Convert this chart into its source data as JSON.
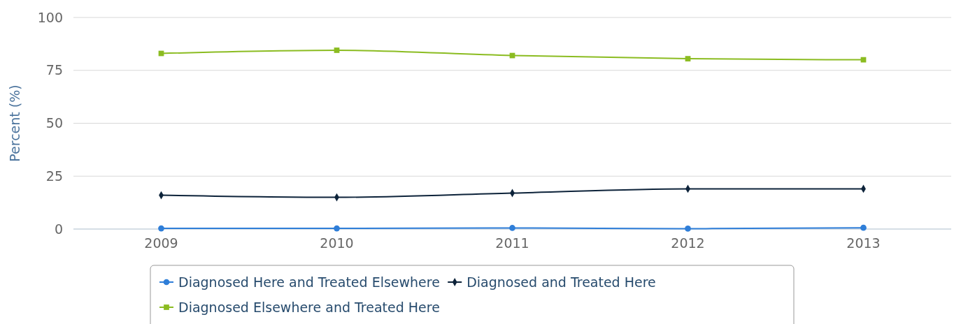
{
  "chart_data": {
    "type": "line",
    "ylabel": "Percent (%)",
    "categories": [
      "2009",
      "2010",
      "2011",
      "2012",
      "2013"
    ],
    "ylim": [
      0,
      100
    ],
    "yticks": [
      0,
      25,
      50,
      75,
      100
    ],
    "grid": "y",
    "legend": "bottom",
    "series": [
      {
        "name": "Diagnosed Here and Treated Elsewhere",
        "color": "#2f7ed8",
        "marker": "circle",
        "values": [
          0.3,
          0.3,
          0.5,
          0.2,
          0.6
        ]
      },
      {
        "name": "Diagnosed and Treated Here",
        "color": "#0d233a",
        "marker": "diamond",
        "values": [
          16,
          15,
          17,
          19,
          19
        ]
      },
      {
        "name": "Diagnosed Elsewhere and Treated Here",
        "color": "#8bbc21",
        "marker": "square",
        "values": [
          83,
          84.5,
          82,
          80.5,
          80
        ]
      }
    ]
  }
}
